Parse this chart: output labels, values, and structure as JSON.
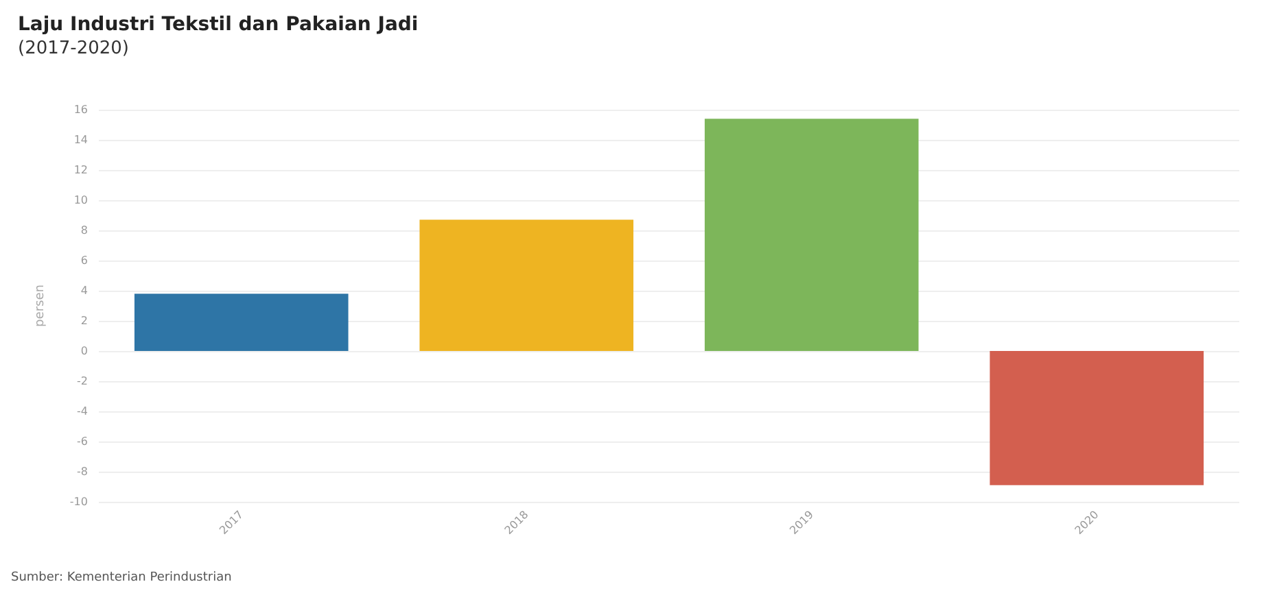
{
  "chart_data": {
    "type": "bar",
    "title": "Laju Industri Tekstil dan Pakaian Jadi",
    "subtitle": "(2017-2020)",
    "ylabel": "persen",
    "categories": [
      "2017",
      "2018",
      "2019",
      "2020"
    ],
    "values": [
      3.8,
      8.7,
      15.4,
      -8.9
    ],
    "colors": [
      "#2e75a6",
      "#eeb422",
      "#7db65a",
      "#d35f4f"
    ],
    "ylim": [
      -10,
      16
    ],
    "yticks": [
      -10,
      -8,
      -6,
      -4,
      -2,
      0,
      2,
      4,
      6,
      8,
      10,
      12,
      14,
      16
    ],
    "grid": "y",
    "annotations": [
      "Sumber: Kementerian Perindustrian"
    ]
  }
}
